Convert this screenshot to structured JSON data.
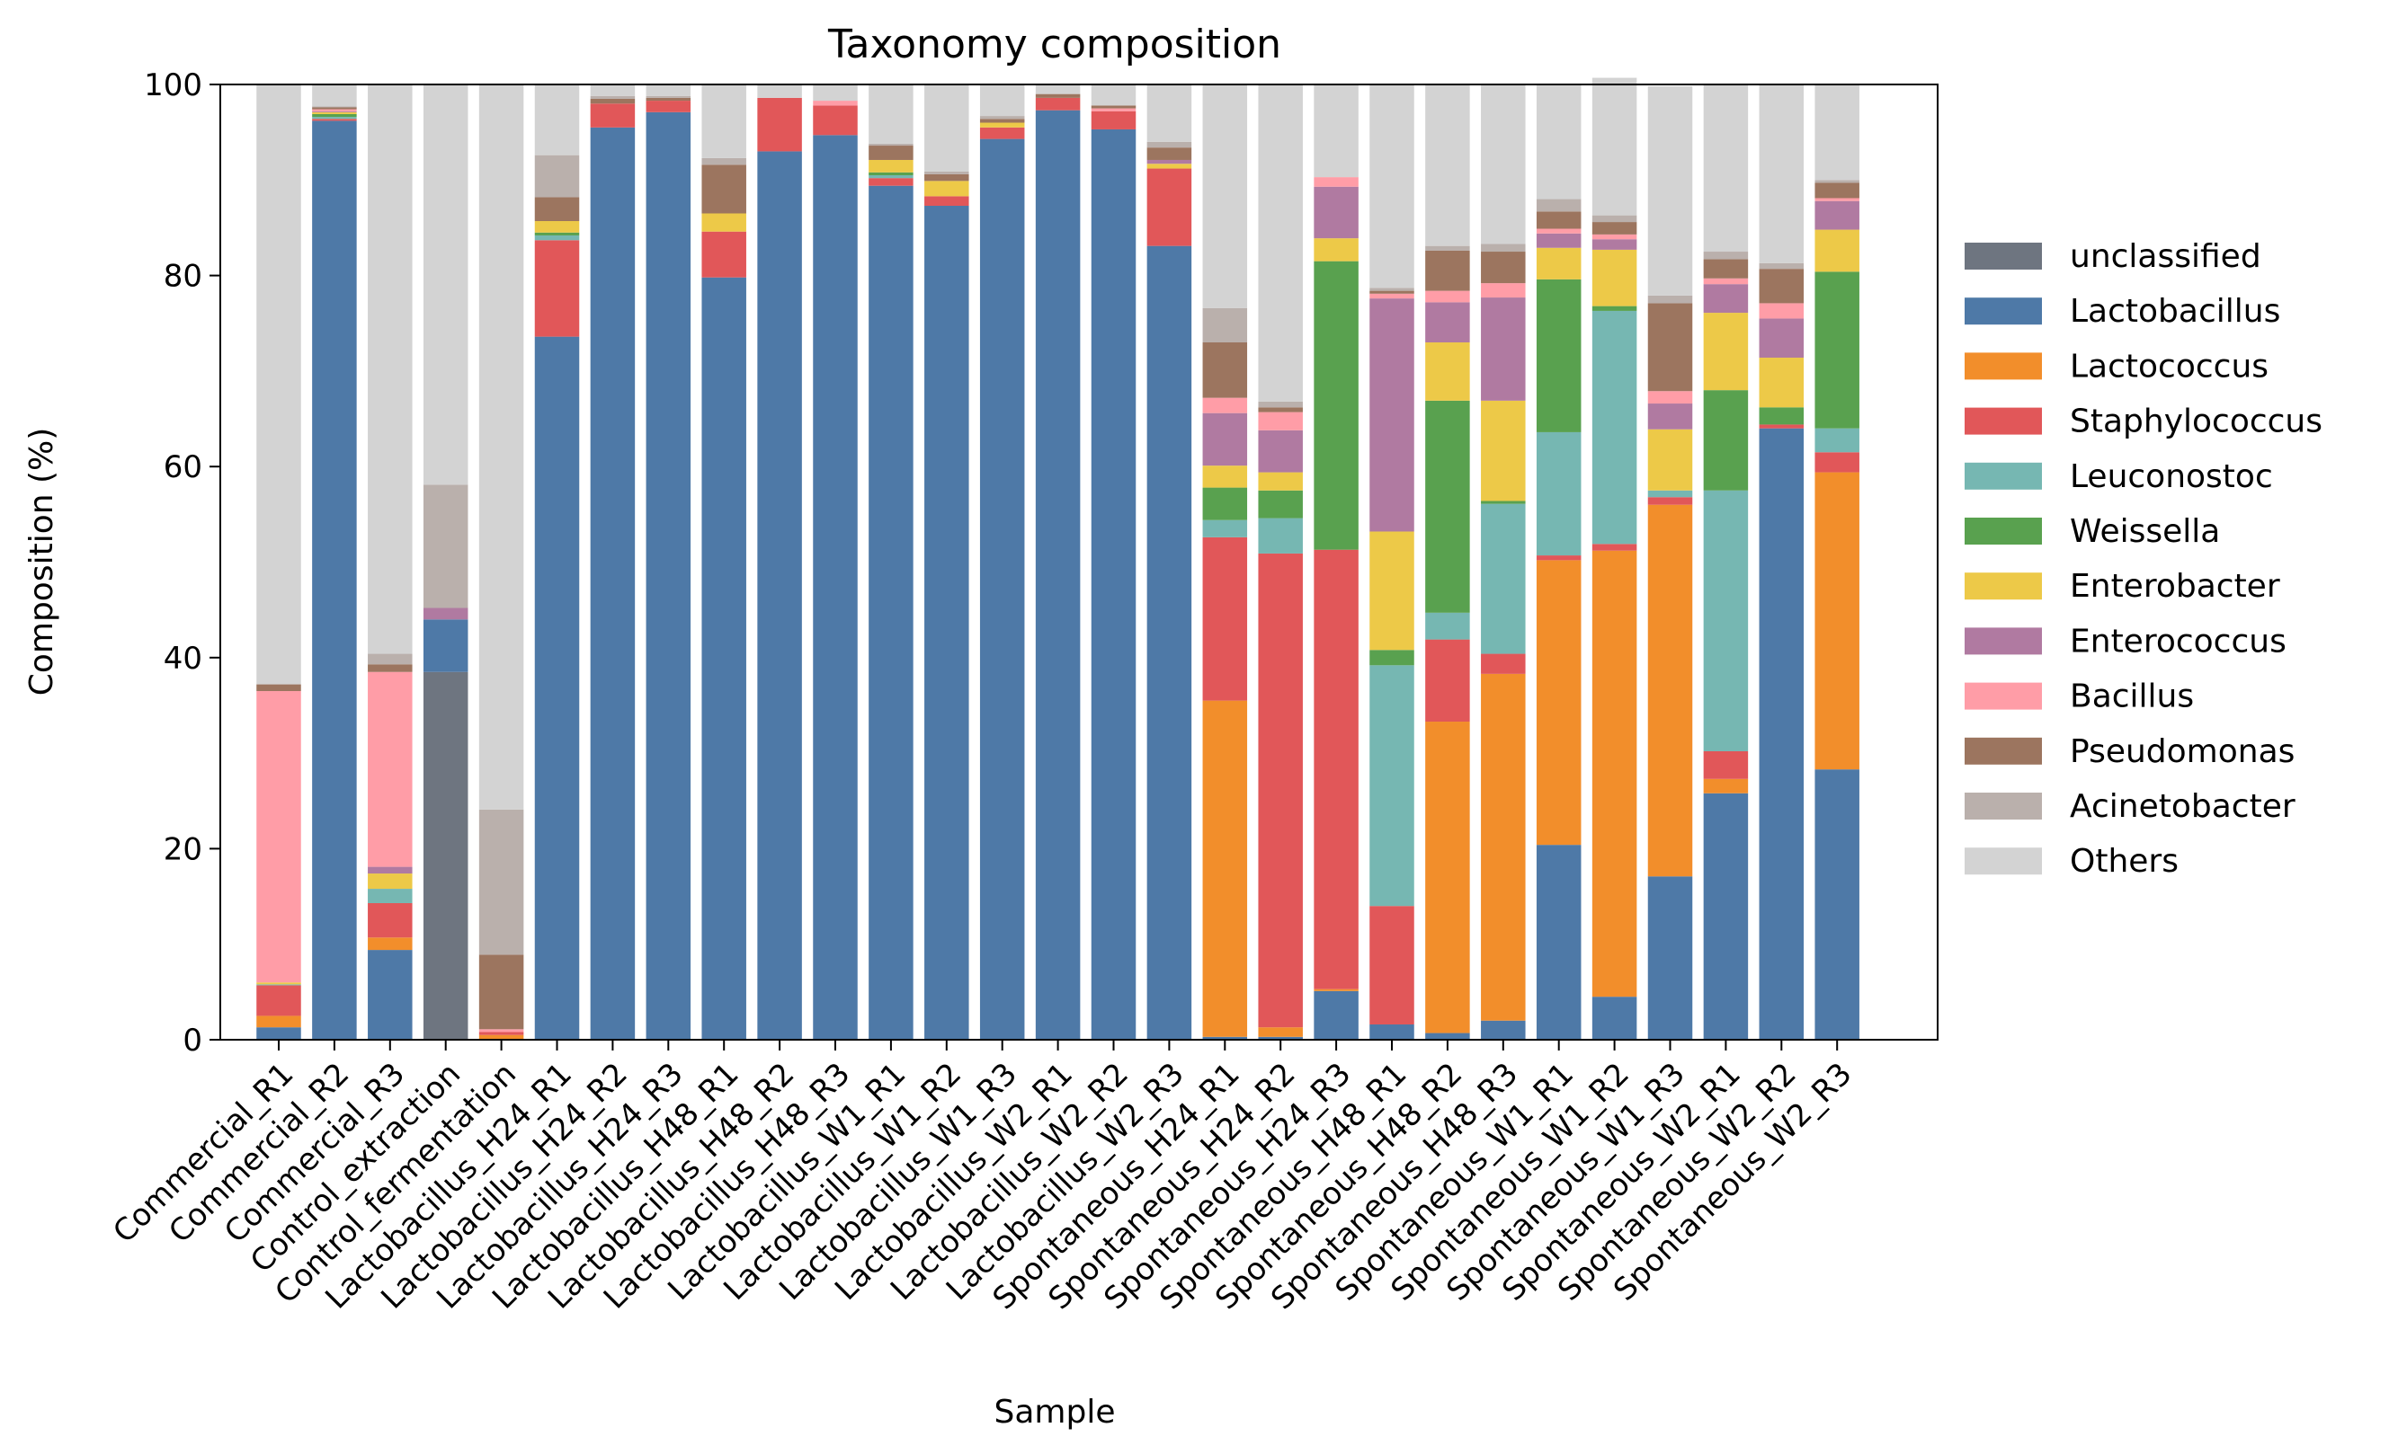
{
  "chart_data": {
    "type": "bar",
    "stacked": true,
    "title": "Taxonomy composition",
    "xlabel": "Sample",
    "ylabel": "Composition (%)",
    "ylim": [
      0,
      100
    ],
    "yticks": [
      0,
      20,
      40,
      60,
      80,
      100
    ],
    "legend_position": "right",
    "categories": [
      "Commercial_R1",
      "Commercial_R2",
      "Commercial_R3",
      "Control_extraction",
      "Control_fermentation",
      "Lactobacillus_H24_R1",
      "Lactobacillus_H24_R2",
      "Lactobacillus_H24_R3",
      "Lactobacillus_H48_R1",
      "Lactobacillus_H48_R2",
      "Lactobacillus_H48_R3",
      "Lactobacillus_W1_R1",
      "Lactobacillus_W1_R2",
      "Lactobacillus_W1_R3",
      "Lactobacillus_W2_R1",
      "Lactobacillus_W2_R2",
      "Lactobacillus_W2_R3",
      "Spontaneous_H24_R1",
      "Spontaneous_H24_R2",
      "Spontaneous_H24_R3",
      "Spontaneous_H48_R1",
      "Spontaneous_H48_R2",
      "Spontaneous_H48_R3",
      "Spontaneous_W1_R1",
      "Spontaneous_W1_R2",
      "Spontaneous_W1_R3",
      "Spontaneous_W2_R1",
      "Spontaneous_W2_R2",
      "Spontaneous_W2_R3"
    ],
    "series": [
      {
        "name": "unclassified",
        "color": "#6e7580",
        "values": [
          0,
          0,
          0,
          38.5,
          0,
          0,
          0,
          0,
          0,
          0,
          0,
          0,
          0,
          0,
          0,
          0,
          0,
          0,
          0,
          0,
          0,
          0,
          0,
          0,
          0,
          0,
          0,
          0,
          0
        ]
      },
      {
        "name": "Lactobacillus",
        "color": "#4e79a7",
        "values": [
          1.3,
          96.2,
          9.4,
          5.5,
          0,
          73.6,
          95.5,
          97.1,
          79.8,
          93.0,
          94.7,
          89.4,
          87.3,
          94.3,
          97.3,
          95.3,
          83.1,
          0.3,
          0.3,
          5.1,
          1.6,
          0.7,
          2.0,
          20.4,
          4.5,
          17.1,
          25.8,
          64.0,
          28.3
        ]
      },
      {
        "name": "Lactococcus",
        "color": "#f28e2b",
        "values": [
          1.2,
          0,
          1.3,
          0,
          0.5,
          0,
          0,
          0,
          0,
          0,
          0,
          0,
          0,
          0,
          0,
          0,
          0,
          35.2,
          1.0,
          0.2,
          0,
          32.6,
          36.3,
          29.8,
          46.7,
          38.9,
          1.5,
          0,
          31.1
        ]
      },
      {
        "name": "Staphylococcus",
        "color": "#e15759",
        "values": [
          3.2,
          0.2,
          3.6,
          0,
          0.3,
          10.1,
          2.5,
          1.2,
          4.8,
          5.6,
          3.1,
          0.8,
          1.0,
          1.2,
          1.3,
          1.9,
          8.1,
          17.1,
          49.6,
          46.0,
          12.4,
          8.6,
          2.1,
          0.5,
          0.7,
          0.8,
          2.9,
          0.4,
          2.1
        ]
      },
      {
        "name": "Leuconostoc",
        "color": "#76b7b2",
        "values": [
          0.1,
          0.2,
          1.5,
          0,
          0,
          0.5,
          0,
          0,
          0,
          0,
          0,
          0.3,
          0,
          0,
          0,
          0,
          0,
          1.8,
          3.7,
          0,
          25.2,
          2.8,
          15.7,
          12.9,
          24.4,
          0.7,
          27.3,
          0,
          2.5
        ]
      },
      {
        "name": "Weissella",
        "color": "#59a14f",
        "values": [
          0,
          0.3,
          0,
          0,
          0,
          0.3,
          0,
          0,
          0,
          0,
          0,
          0.3,
          0,
          0,
          0,
          0,
          0,
          3.4,
          2.9,
          30.2,
          1.6,
          22.2,
          0.3,
          16.0,
          0.5,
          0,
          10.5,
          1.8,
          16.4
        ]
      },
      {
        "name": "Enterobacter",
        "color": "#edc948",
        "values": [
          0.2,
          0.2,
          1.6,
          0,
          0,
          1.2,
          0,
          0,
          1.9,
          0,
          0,
          1.3,
          1.6,
          0.5,
          0,
          0,
          0.5,
          2.3,
          1.9,
          2.4,
          12.4,
          6.1,
          10.5,
          3.3,
          5.9,
          6.4,
          8.1,
          5.2,
          4.4
        ]
      },
      {
        "name": "Enterococcus",
        "color": "#b07aa1",
        "values": [
          0,
          0.1,
          0.7,
          1.2,
          0,
          0,
          0,
          0,
          0,
          0,
          0,
          0,
          0,
          0,
          0,
          0,
          0.4,
          5.5,
          4.4,
          5.4,
          24.4,
          4.2,
          10.8,
          1.5,
          1.1,
          2.7,
          3.0,
          4.1,
          3.0
        ]
      },
      {
        "name": "Bacillus",
        "color": "#ff9da7",
        "values": [
          30.5,
          0.2,
          20.4,
          0,
          0.3,
          0,
          0,
          0,
          0,
          0,
          0.5,
          0,
          0,
          0,
          0,
          0.3,
          0,
          1.6,
          1.9,
          1.0,
          0.5,
          1.2,
          1.5,
          0.5,
          0.5,
          1.3,
          0.6,
          1.6,
          0.3
        ]
      },
      {
        "name": "Pseudomonas",
        "color": "#9c755f",
        "values": [
          0.7,
          0.2,
          0.8,
          0,
          7.8,
          2.5,
          0.5,
          0.3,
          5.1,
          0,
          0,
          1.5,
          0.7,
          0.4,
          0.4,
          0.3,
          1.3,
          5.8,
          0.5,
          0,
          0.3,
          4.2,
          3.3,
          1.8,
          1.3,
          9.2,
          2.0,
          3.6,
          1.6
        ]
      },
      {
        "name": "Acinetobacter",
        "color": "#bab0ac",
        "values": [
          0,
          0.1,
          1.1,
          12.9,
          15.2,
          4.4,
          0.3,
          0.2,
          0.7,
          0,
          0,
          0.2,
          0.3,
          0.3,
          0,
          0,
          0.6,
          3.6,
          0.6,
          0,
          0.3,
          0.5,
          0.8,
          1.3,
          0.7,
          0.8,
          0.8,
          0.6,
          0.3
        ]
      },
      {
        "name": "Others",
        "color": "#d3d3d3",
        "values": [
          62.8,
          2.3,
          59.5,
          41.9,
          75.9,
          7.4,
          1.2,
          1.2,
          7.7,
          1.4,
          1.7,
          6.2,
          9.1,
          3.3,
          1.0,
          2.2,
          6.0,
          23.4,
          33.2,
          9.7,
          21.3,
          16.9,
          16.7,
          11.9,
          14.4,
          21.9,
          17.5,
          18.7,
          10.0
        ]
      }
    ]
  }
}
